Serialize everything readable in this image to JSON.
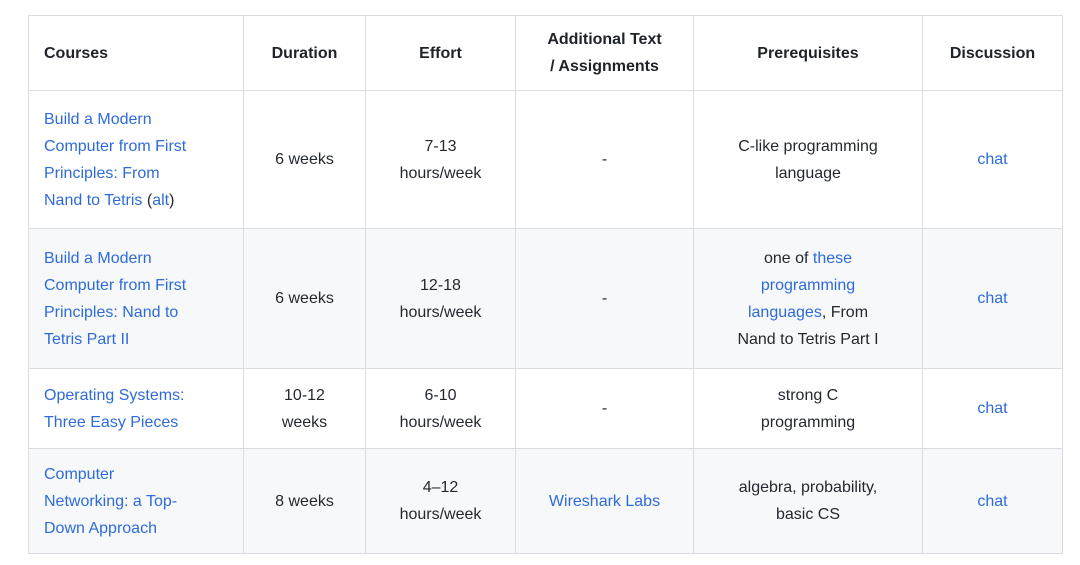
{
  "colors": {
    "link_blue": "#2e6bd9",
    "alt_row_background": "#f6f8fa",
    "border_gray": "#d9dce1",
    "text_dark": "#24292f"
  },
  "table": {
    "headers": {
      "courses": "Courses",
      "duration": "Duration",
      "effort": "Effort",
      "additional_lines": [
        "Additional Text",
        "/ Assignments"
      ],
      "prerequisites": "Prerequisites",
      "discussion": "Discussion"
    },
    "rows": [
      {
        "course": {
          "link_lines": [
            "Build a Modern",
            "Computer from First",
            "Principles: From",
            "Nand to Tetris"
          ],
          "open_paren": " (",
          "alt_label": "alt",
          "close_paren": ")"
        },
        "duration_lines": [
          "6 weeks"
        ],
        "effort_lines": [
          "7-13",
          "hours/week"
        ],
        "additional": "-",
        "prereq_lines": [
          "C-like programming",
          "language"
        ],
        "discussion": "chat"
      },
      {
        "course": {
          "link_lines": [
            "Build a Modern",
            "Computer from First",
            "Principles: Nand to",
            "Tetris Part II"
          ]
        },
        "duration_lines": [
          "6 weeks"
        ],
        "effort_lines": [
          "12-18",
          "hours/week"
        ],
        "additional": "-",
        "prereq": {
          "pre": "one of ",
          "link_lines": [
            "these",
            "programming",
            "languages"
          ],
          "post_inline": ", From",
          "post_line": "Nand to Tetris Part I"
        },
        "discussion": "chat"
      },
      {
        "course": {
          "link_lines": [
            "Operating Systems:",
            "Three Easy Pieces"
          ]
        },
        "duration_lines": [
          "10-12",
          "weeks"
        ],
        "effort_lines": [
          "6-10",
          "hours/week"
        ],
        "additional": "-",
        "prereq_lines": [
          "strong C",
          "programming"
        ],
        "discussion": "chat"
      },
      {
        "course": {
          "link_lines": [
            "Computer",
            "Networking: a Top-",
            "Down Approach"
          ]
        },
        "duration_lines": [
          "8 weeks"
        ],
        "effort_lines": [
          "4–12",
          "hours/week"
        ],
        "additional_link": "Wireshark Labs",
        "prereq_lines": [
          "algebra, probability,",
          "basic CS"
        ],
        "discussion": "chat"
      }
    ]
  }
}
